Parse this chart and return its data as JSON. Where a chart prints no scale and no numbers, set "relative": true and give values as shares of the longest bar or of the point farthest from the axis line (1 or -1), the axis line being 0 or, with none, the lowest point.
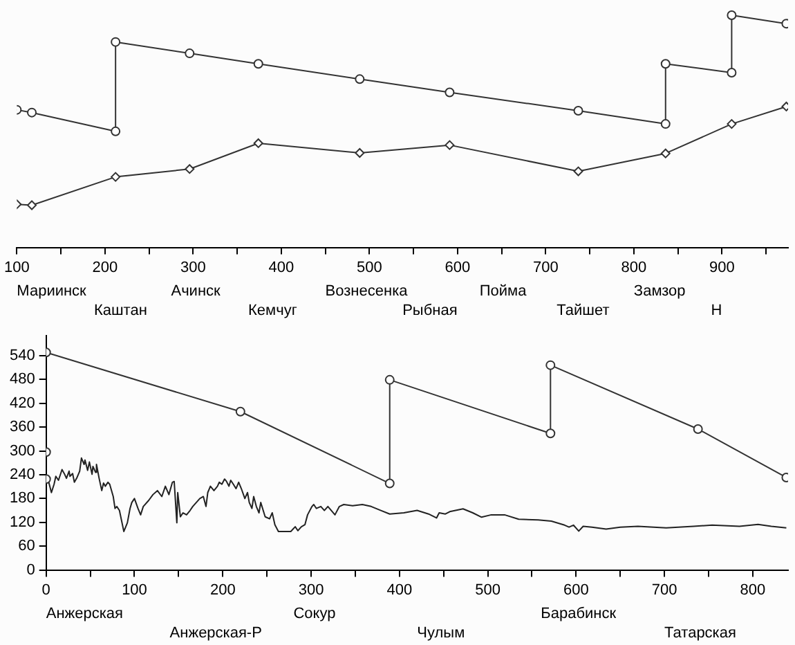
{
  "chart_data": [
    {
      "type": "line",
      "relative": true,
      "xlim": [
        100,
        975
      ],
      "xticks": [
        100,
        {
          "value": 150,
          "label": null
        },
        200,
        {
          "value": 250,
          "label": null
        },
        300,
        {
          "value": 350,
          "label": null
        },
        400,
        {
          "value": 450,
          "label": null
        },
        500,
        {
          "value": 550,
          "label": null
        },
        600,
        {
          "value": 650,
          "label": null
        },
        700,
        {
          "value": 750,
          "label": null
        },
        800,
        {
          "value": 850,
          "label": null
        },
        900,
        {
          "value": 950,
          "label": null
        }
      ],
      "grid": false,
      "legend": false,
      "line_style": "solid",
      "series": [
        {
          "color": "#333333",
          "marker": "circle",
          "x": [
            100,
            117,
            212,
            212,
            296,
            374,
            489,
            591,
            737,
            836,
            836,
            911,
            911,
            973
          ],
          "values": [
            0.593,
            0.581,
            0.5,
            0.885,
            0.836,
            0.791,
            0.725,
            0.668,
            0.589,
            0.532,
            0.791,
            0.753,
            1,
            0.964
          ]
        },
        {
          "color": "#333333",
          "marker": "diamond",
          "x": [
            100,
            117,
            212,
            296,
            374,
            489,
            591,
            737,
            836,
            911,
            973
          ],
          "values": [
            0.186,
            0.182,
            0.304,
            0.338,
            0.449,
            0.407,
            0.441,
            0.328,
            0.405,
            0.532,
            0.607
          ]
        }
      ],
      "annotations": [
        "Мариинск",
        "Каштан",
        "Ачинск",
        "Кемчуг",
        "Вознесенка",
        "Рыбная",
        "Пойма",
        "Тайшет",
        "Замзор",
        "Н"
      ]
    },
    {
      "type": "line",
      "xlim": [
        0,
        840
      ],
      "ylim": [
        0,
        590
      ],
      "xticks": [
        0,
        {
          "value": 50,
          "label": null
        },
        100,
        {
          "value": 150,
          "label": null
        },
        200,
        {
          "value": 250,
          "label": null
        },
        300,
        {
          "value": 350,
          "label": null
        },
        400,
        {
          "value": 450,
          "label": null
        },
        500,
        {
          "value": 550,
          "label": null
        },
        600,
        {
          "value": 650,
          "label": null
        },
        700,
        {
          "value": 750,
          "label": null
        },
        800
      ],
      "yticks": [
        0,
        60,
        120,
        180,
        240,
        300,
        360,
        420,
        480,
        540
      ],
      "grid": false,
      "legend": false,
      "line_style": "solid",
      "series": [
        {
          "color": "#333333",
          "marker": "circle",
          "x": [
            0,
            220,
            389,
            389,
            571,
            571,
            738,
            838
          ],
          "values": [
            548,
            399,
            218,
            479,
            344,
            516,
            355,
            233
          ]
        },
        {
          "type": "scatter",
          "color": "#333333",
          "marker": "circle",
          "x": [
            0,
            0
          ],
          "values": [
            297,
            229
          ]
        },
        {
          "color": "#222222",
          "marker": "none",
          "x": [
            0,
            3,
            6,
            9,
            11,
            14,
            18,
            21,
            23,
            26,
            27,
            30,
            32,
            35,
            38,
            40,
            43,
            44,
            47,
            49,
            52,
            53,
            56,
            57,
            60,
            63,
            65,
            67,
            70,
            72,
            76,
            78,
            80,
            83,
            88,
            92,
            95,
            97,
            100,
            104,
            107,
            110,
            116,
            121,
            126,
            131,
            135,
            139,
            143,
            145,
            148,
            149,
            152,
            155,
            159,
            163,
            166,
            170,
            174,
            178,
            181,
            183,
            186,
            190,
            194,
            196,
            199,
            202,
            204,
            207,
            209,
            212,
            215,
            218,
            221,
            225,
            228,
            230,
            233,
            235,
            238,
            241,
            243,
            248,
            253,
            256,
            259,
            263,
            269,
            277,
            282,
            285,
            289,
            293,
            296,
            301,
            303,
            306,
            311,
            315,
            319,
            327,
            332,
            337,
            347,
            358,
            368,
            379,
            389,
            405,
            420,
            433,
            442,
            445,
            452,
            457,
            472,
            483,
            493,
            504,
            519,
            535,
            557,
            572,
            587,
            592,
            597,
            603,
            608,
            618,
            634,
            650,
            670,
            702,
            733,
            754,
            785,
            806,
            821,
            838
          ],
          "values": [
            229,
            221,
            195,
            216,
            236,
            226,
            253,
            241,
            231,
            249,
            236,
            243,
            221,
            233,
            249,
            282,
            266,
            277,
            251,
            272,
            241,
            261,
            246,
            266,
            231,
            200,
            219,
            211,
            221,
            216,
            185,
            155,
            160,
            150,
            97,
            119,
            155,
            170,
            180,
            155,
            139,
            160,
            175,
            190,
            200,
            185,
            211,
            190,
            221,
            223,
            119,
            195,
            134,
            144,
            139,
            150,
            160,
            170,
            180,
            185,
            160,
            195,
            211,
            200,
            211,
            221,
            216,
            229,
            224,
            211,
            226,
            216,
            205,
            221,
            205,
            180,
            195,
            170,
            155,
            185,
            160,
            144,
            170,
            134,
            129,
            144,
            114,
            97,
            97,
            97,
            109,
            99,
            109,
            114,
            139,
            160,
            165,
            155,
            160,
            150,
            160,
            139,
            160,
            165,
            162,
            165,
            160,
            150,
            141,
            144,
            150,
            141,
            131,
            144,
            141,
            147,
            154,
            144,
            133,
            139,
            139,
            128,
            126,
            123,
            113,
            108,
            113,
            98,
            110,
            108,
            103,
            108,
            110,
            106,
            110,
            113,
            110,
            115,
            110,
            106
          ]
        }
      ],
      "annotations": [
        "Анжерская",
        "Анжерская-Р",
        "Сокур",
        "Чулым",
        "Барабинск",
        "Татарская"
      ]
    }
  ]
}
